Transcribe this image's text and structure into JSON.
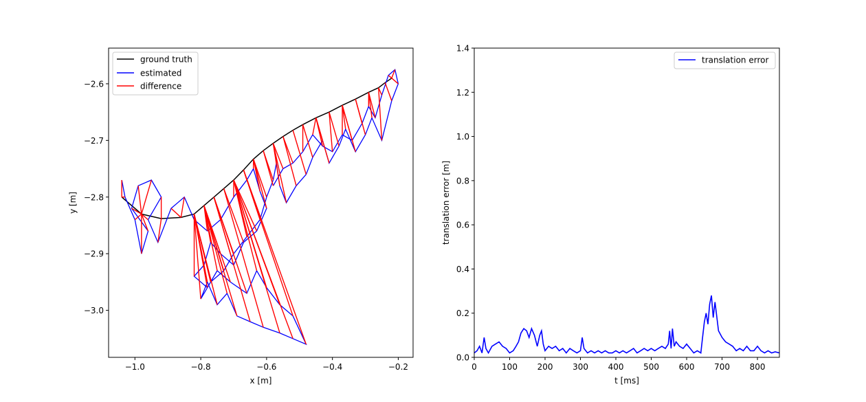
{
  "chart_data": [
    {
      "type": "line",
      "xlabel": "x [m]",
      "ylabel": "y [m]",
      "xlim": [
        -1.08,
        -0.155
      ],
      "ylim": [
        -3.083,
        -2.537
      ],
      "xticks": [
        -1.0,
        -0.8,
        -0.6,
        -0.4,
        -0.2
      ],
      "xtick_labels": [
        "−1.0",
        "−0.8",
        "−0.6",
        "−0.4",
        "−0.2"
      ],
      "yticks": [
        -2.6,
        -2.7,
        -2.8,
        -2.9,
        -3.0
      ],
      "ytick_labels": [
        "−2.6",
        "−2.7",
        "−2.8",
        "−2.9",
        "−3.0"
      ],
      "legend_position": "upper-left",
      "colors": {
        "ground_truth": "#000000",
        "estimated": "#0000ff",
        "difference": "#ff0000"
      },
      "series": [
        {
          "name": "ground truth",
          "color": "#000000",
          "x": [
            -1.04,
            -0.98,
            -0.92,
            -0.86,
            -0.82,
            -0.79,
            -0.76,
            -0.73,
            -0.7,
            -0.67,
            -0.64,
            -0.61,
            -0.58,
            -0.55,
            -0.52,
            -0.49,
            -0.45,
            -0.41,
            -0.37,
            -0.33,
            -0.29,
            -0.26,
            -0.24,
            -0.22
          ],
          "y": [
            -2.8,
            -2.83,
            -2.838,
            -2.836,
            -2.83,
            -2.815,
            -2.8,
            -2.785,
            -2.77,
            -2.752,
            -2.733,
            -2.718,
            -2.705,
            -2.693,
            -2.682,
            -2.672,
            -2.66,
            -2.65,
            -2.638,
            -2.627,
            -2.615,
            -2.607,
            -2.598,
            -2.59
          ]
        },
        {
          "name": "estimated",
          "color": "#0000ff",
          "x": [
            -1.04,
            -1.03,
            -1.0,
            -0.98,
            -0.96,
            -1.01,
            -0.99,
            -0.95,
            -0.92,
            -0.96,
            -0.93,
            -0.89,
            -0.85,
            -0.82,
            -0.78,
            -0.74,
            -0.7,
            -0.66,
            -0.64,
            -0.62,
            -0.6,
            -0.63,
            -0.67,
            -0.7,
            -0.74,
            -0.77,
            -0.79,
            -0.82,
            -0.78,
            -0.75,
            -0.71,
            -0.66,
            -0.63,
            -0.6,
            -0.56,
            -0.52,
            -0.48,
            -0.52,
            -0.56,
            -0.61,
            -0.65,
            -0.69,
            -0.72,
            -0.75,
            -0.78,
            -0.8,
            -0.77,
            -0.73,
            -0.7,
            -0.66,
            -0.62,
            -0.6,
            -0.58,
            -0.57,
            -0.56,
            -0.54,
            -0.51,
            -0.48,
            -0.46,
            -0.43,
            -0.41,
            -0.38,
            -0.36,
            -0.33,
            -0.3,
            -0.28,
            -0.25,
            -0.22,
            -0.2,
            -0.21,
            -0.23,
            -0.25,
            -0.27,
            -0.29,
            -0.31,
            -0.34,
            -0.37,
            -0.4,
            -0.43,
            -0.46,
            -0.49,
            -0.52,
            -0.55,
            -0.58
          ],
          "y": [
            -2.77,
            -2.8,
            -2.84,
            -2.9,
            -2.86,
            -2.82,
            -2.78,
            -2.77,
            -2.8,
            -2.84,
            -2.88,
            -2.82,
            -2.8,
            -2.84,
            -2.86,
            -2.84,
            -2.8,
            -2.77,
            -2.75,
            -2.79,
            -2.82,
            -2.86,
            -2.88,
            -2.92,
            -2.9,
            -2.88,
            -2.92,
            -2.94,
            -2.96,
            -2.93,
            -2.95,
            -2.97,
            -2.93,
            -2.96,
            -2.99,
            -3.01,
            -3.06,
            -3.05,
            -3.04,
            -3.03,
            -3.02,
            -3.01,
            -2.97,
            -2.99,
            -2.95,
            -2.98,
            -2.95,
            -2.93,
            -2.9,
            -2.87,
            -2.84,
            -2.8,
            -2.77,
            -2.74,
            -2.78,
            -2.81,
            -2.78,
            -2.76,
            -2.73,
            -2.7,
            -2.74,
            -2.71,
            -2.68,
            -2.72,
            -2.69,
            -2.66,
            -2.7,
            -2.63,
            -2.6,
            -2.575,
            -2.585,
            -2.62,
            -2.66,
            -2.64,
            -2.67,
            -2.7,
            -2.69,
            -2.72,
            -2.71,
            -2.69,
            -2.72,
            -2.74,
            -2.75,
            -2.78
          ]
        }
      ]
    },
    {
      "type": "line",
      "xlabel": "t [ms]",
      "ylabel": "translation error [m]",
      "xlim": [
        0,
        862
      ],
      "ylim": [
        0,
        1.4
      ],
      "xticks": [
        0,
        100,
        200,
        300,
        400,
        500,
        600,
        700,
        800
      ],
      "yticks": [
        0.0,
        0.2,
        0.4,
        0.6,
        0.8,
        1.0,
        1.2,
        1.4
      ],
      "ytick_labels": [
        "0.0",
        "0.2",
        "0.4",
        "0.6",
        "0.8",
        "1.0",
        "1.2",
        "1.4"
      ],
      "legend_position": "upper-right",
      "series": [
        {
          "name": "translation error",
          "color": "#0000ff",
          "x": [
            0,
            8,
            15,
            22,
            28,
            33,
            40,
            50,
            60,
            70,
            80,
            90,
            100,
            110,
            118,
            125,
            132,
            140,
            148,
            155,
            162,
            170,
            178,
            185,
            190,
            195,
            200,
            210,
            220,
            230,
            240,
            250,
            260,
            270,
            280,
            290,
            300,
            305,
            310,
            320,
            330,
            340,
            350,
            360,
            370,
            380,
            390,
            400,
            410,
            420,
            430,
            440,
            450,
            460,
            470,
            480,
            490,
            500,
            510,
            520,
            530,
            540,
            548,
            552,
            556,
            560,
            565,
            570,
            580,
            590,
            600,
            610,
            620,
            630,
            640,
            645,
            650,
            655,
            660,
            665,
            670,
            675,
            680,
            690,
            700,
            710,
            720,
            730,
            740,
            750,
            760,
            770,
            780,
            790,
            800,
            810,
            820,
            830,
            840,
            850,
            862
          ],
          "y": [
            0.02,
            0.03,
            0.05,
            0.02,
            0.09,
            0.04,
            0.02,
            0.05,
            0.06,
            0.07,
            0.05,
            0.04,
            0.02,
            0.03,
            0.05,
            0.07,
            0.11,
            0.13,
            0.12,
            0.09,
            0.13,
            0.1,
            0.05,
            0.1,
            0.12,
            0.06,
            0.03,
            0.05,
            0.04,
            0.05,
            0.03,
            0.04,
            0.02,
            0.04,
            0.03,
            0.02,
            0.03,
            0.09,
            0.04,
            0.02,
            0.03,
            0.02,
            0.03,
            0.02,
            0.03,
            0.02,
            0.02,
            0.03,
            0.02,
            0.03,
            0.02,
            0.03,
            0.04,
            0.02,
            0.03,
            0.04,
            0.03,
            0.04,
            0.03,
            0.04,
            0.05,
            0.04,
            0.06,
            0.12,
            0.04,
            0.13,
            0.05,
            0.07,
            0.05,
            0.04,
            0.06,
            0.04,
            0.02,
            0.03,
            0.02,
            0.09,
            0.16,
            0.2,
            0.15,
            0.24,
            0.28,
            0.18,
            0.25,
            0.12,
            0.09,
            0.07,
            0.06,
            0.05,
            0.03,
            0.04,
            0.03,
            0.05,
            0.03,
            0.03,
            0.05,
            0.03,
            0.02,
            0.03,
            0.02,
            0.025,
            0.02
          ]
        }
      ]
    }
  ]
}
